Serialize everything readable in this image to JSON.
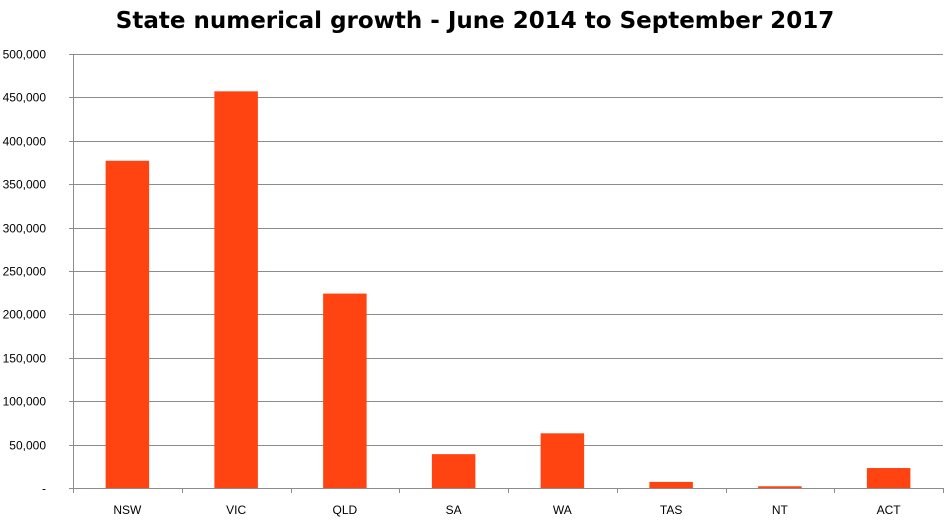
{
  "chart_data": {
    "type": "bar",
    "title": "State numerical growth - June 2014 to September 2017",
    "xlabel": "",
    "ylabel": "",
    "categories": [
      "NSW",
      "VIC",
      "QLD",
      "SA",
      "WA",
      "TAS",
      "NT",
      "ACT"
    ],
    "series": [
      {
        "values": [
          377000,
          457000,
          224000,
          39000,
          63000,
          7000,
          2000,
          23000
        ]
      }
    ],
    "ylim": [
      0,
      500000
    ],
    "yticks": [
      0,
      50000,
      100000,
      150000,
      200000,
      250000,
      300000,
      350000,
      400000,
      450000,
      500000
    ],
    "ytick_labels": [
      "-",
      "50,000",
      "100,000",
      "150,000",
      "200,000",
      "250,000",
      "300,000",
      "350,000",
      "400,000",
      "450,000",
      "500,000"
    ],
    "grid": true,
    "legend": "none",
    "bar_color": "#ff4411",
    "grid_color": "#8c8c8c"
  }
}
